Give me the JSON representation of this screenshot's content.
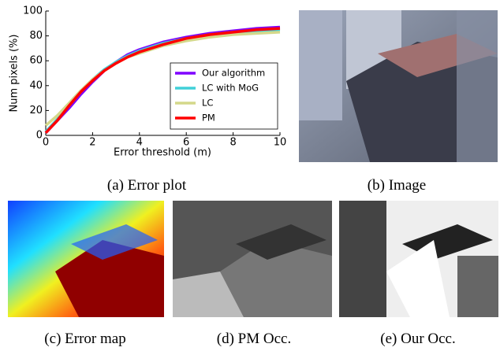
{
  "chart_data": {
    "type": "line",
    "xlabel": "Error threshold (m)",
    "ylabel": "Num pixels (%)",
    "x": [
      0,
      0.5,
      1,
      1.5,
      2,
      2.5,
      3,
      3.5,
      4,
      5,
      6,
      7,
      8,
      9,
      10
    ],
    "series": [
      {
        "name": "Our algorithm",
        "color": "#7f00ff",
        "values": [
          2,
          12,
          22,
          33,
          43,
          52,
          59,
          65,
          69,
          75,
          79,
          82,
          84,
          86,
          87
        ]
      },
      {
        "name": "LC with MoG",
        "color": "#40d0d8",
        "values": [
          3,
          13,
          24,
          35,
          45,
          53,
          59,
          64,
          68,
          74,
          78,
          81,
          83,
          84,
          85
        ]
      },
      {
        "name": "LC",
        "color": "#d4d88a",
        "values": [
          8,
          16,
          26,
          36,
          45,
          52,
          58,
          63,
          66,
          72,
          76,
          79,
          81,
          82,
          83
        ]
      },
      {
        "name": "PM",
        "color": "#ff0000",
        "values": [
          2,
          12,
          24,
          35,
          44,
          52,
          58,
          63,
          67,
          73,
          78,
          81,
          83,
          85,
          86
        ]
      }
    ],
    "xlim": [
      0,
      10
    ],
    "ylim": [
      0,
      100
    ],
    "xticks": [
      0,
      2,
      4,
      6,
      8,
      10
    ],
    "yticks": [
      0,
      20,
      40,
      60,
      80,
      100
    ],
    "legend": "lower right"
  },
  "figure": {
    "captions": [
      "(a) Error plot",
      "(b) Image",
      "(c) Error map",
      "(d) PM Occ.",
      "(e) Our Occ."
    ]
  }
}
